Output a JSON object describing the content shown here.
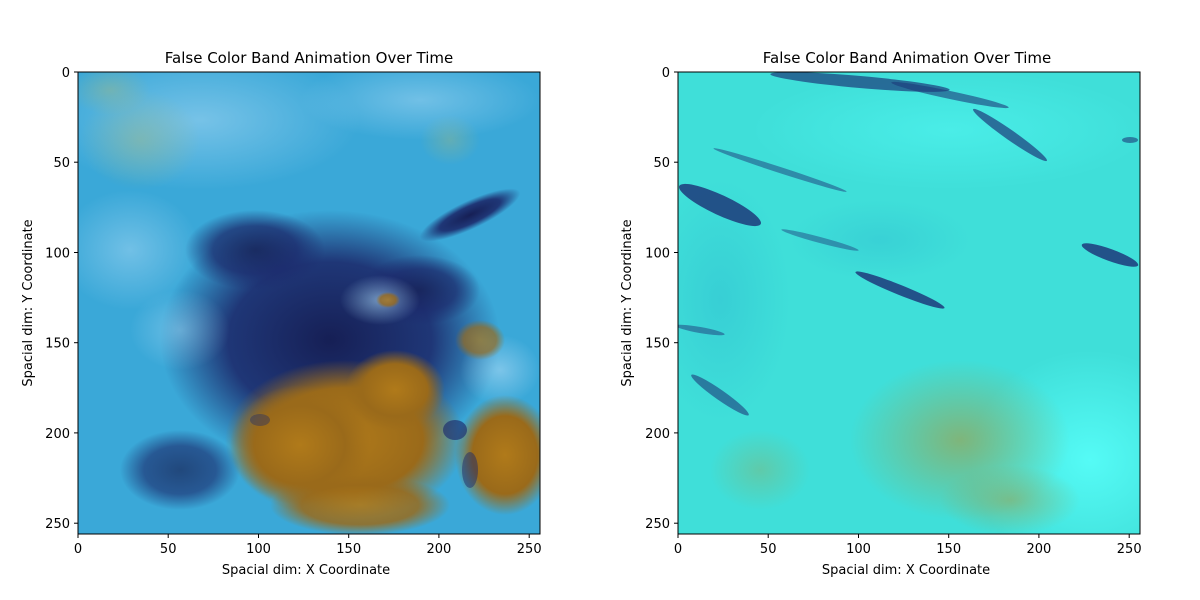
{
  "panels": [
    {
      "title": "False Color Band Animation Over Time",
      "xlabel": "Spacial dim: X Coordinate",
      "ylabel": "Spacial dim: Y Coordinate",
      "xticks": [
        "0",
        "50",
        "100",
        "150",
        "200",
        "250"
      ],
      "yticks": [
        "0",
        "50",
        "100",
        "150",
        "200",
        "250"
      ],
      "xlim": [
        0,
        256
      ],
      "ylim": [
        256,
        0
      ],
      "image_description_colors": {
        "background": "#3aa8d8",
        "dark_cloud": "#1a2560",
        "warm_region": "#a8761e",
        "light_cloud": "#8ac8ee"
      }
    },
    {
      "title": "False Color Band Animation Over Time",
      "xlabel": "Spacial dim: X Coordinate",
      "ylabel": "Spacial dim: Y Coordinate",
      "xticks": [
        "0",
        "50",
        "100",
        "150",
        "200",
        "250"
      ],
      "yticks": [
        "0",
        "50",
        "100",
        "150",
        "200",
        "250"
      ],
      "xlim": [
        0,
        256
      ],
      "ylim": [
        256,
        0
      ],
      "image_description_colors": {
        "background": "#3fe0da",
        "dark_streak": "#1d3a7a",
        "warm_patch": "#8ab46a",
        "light_region": "#4af3ee"
      }
    }
  ]
}
